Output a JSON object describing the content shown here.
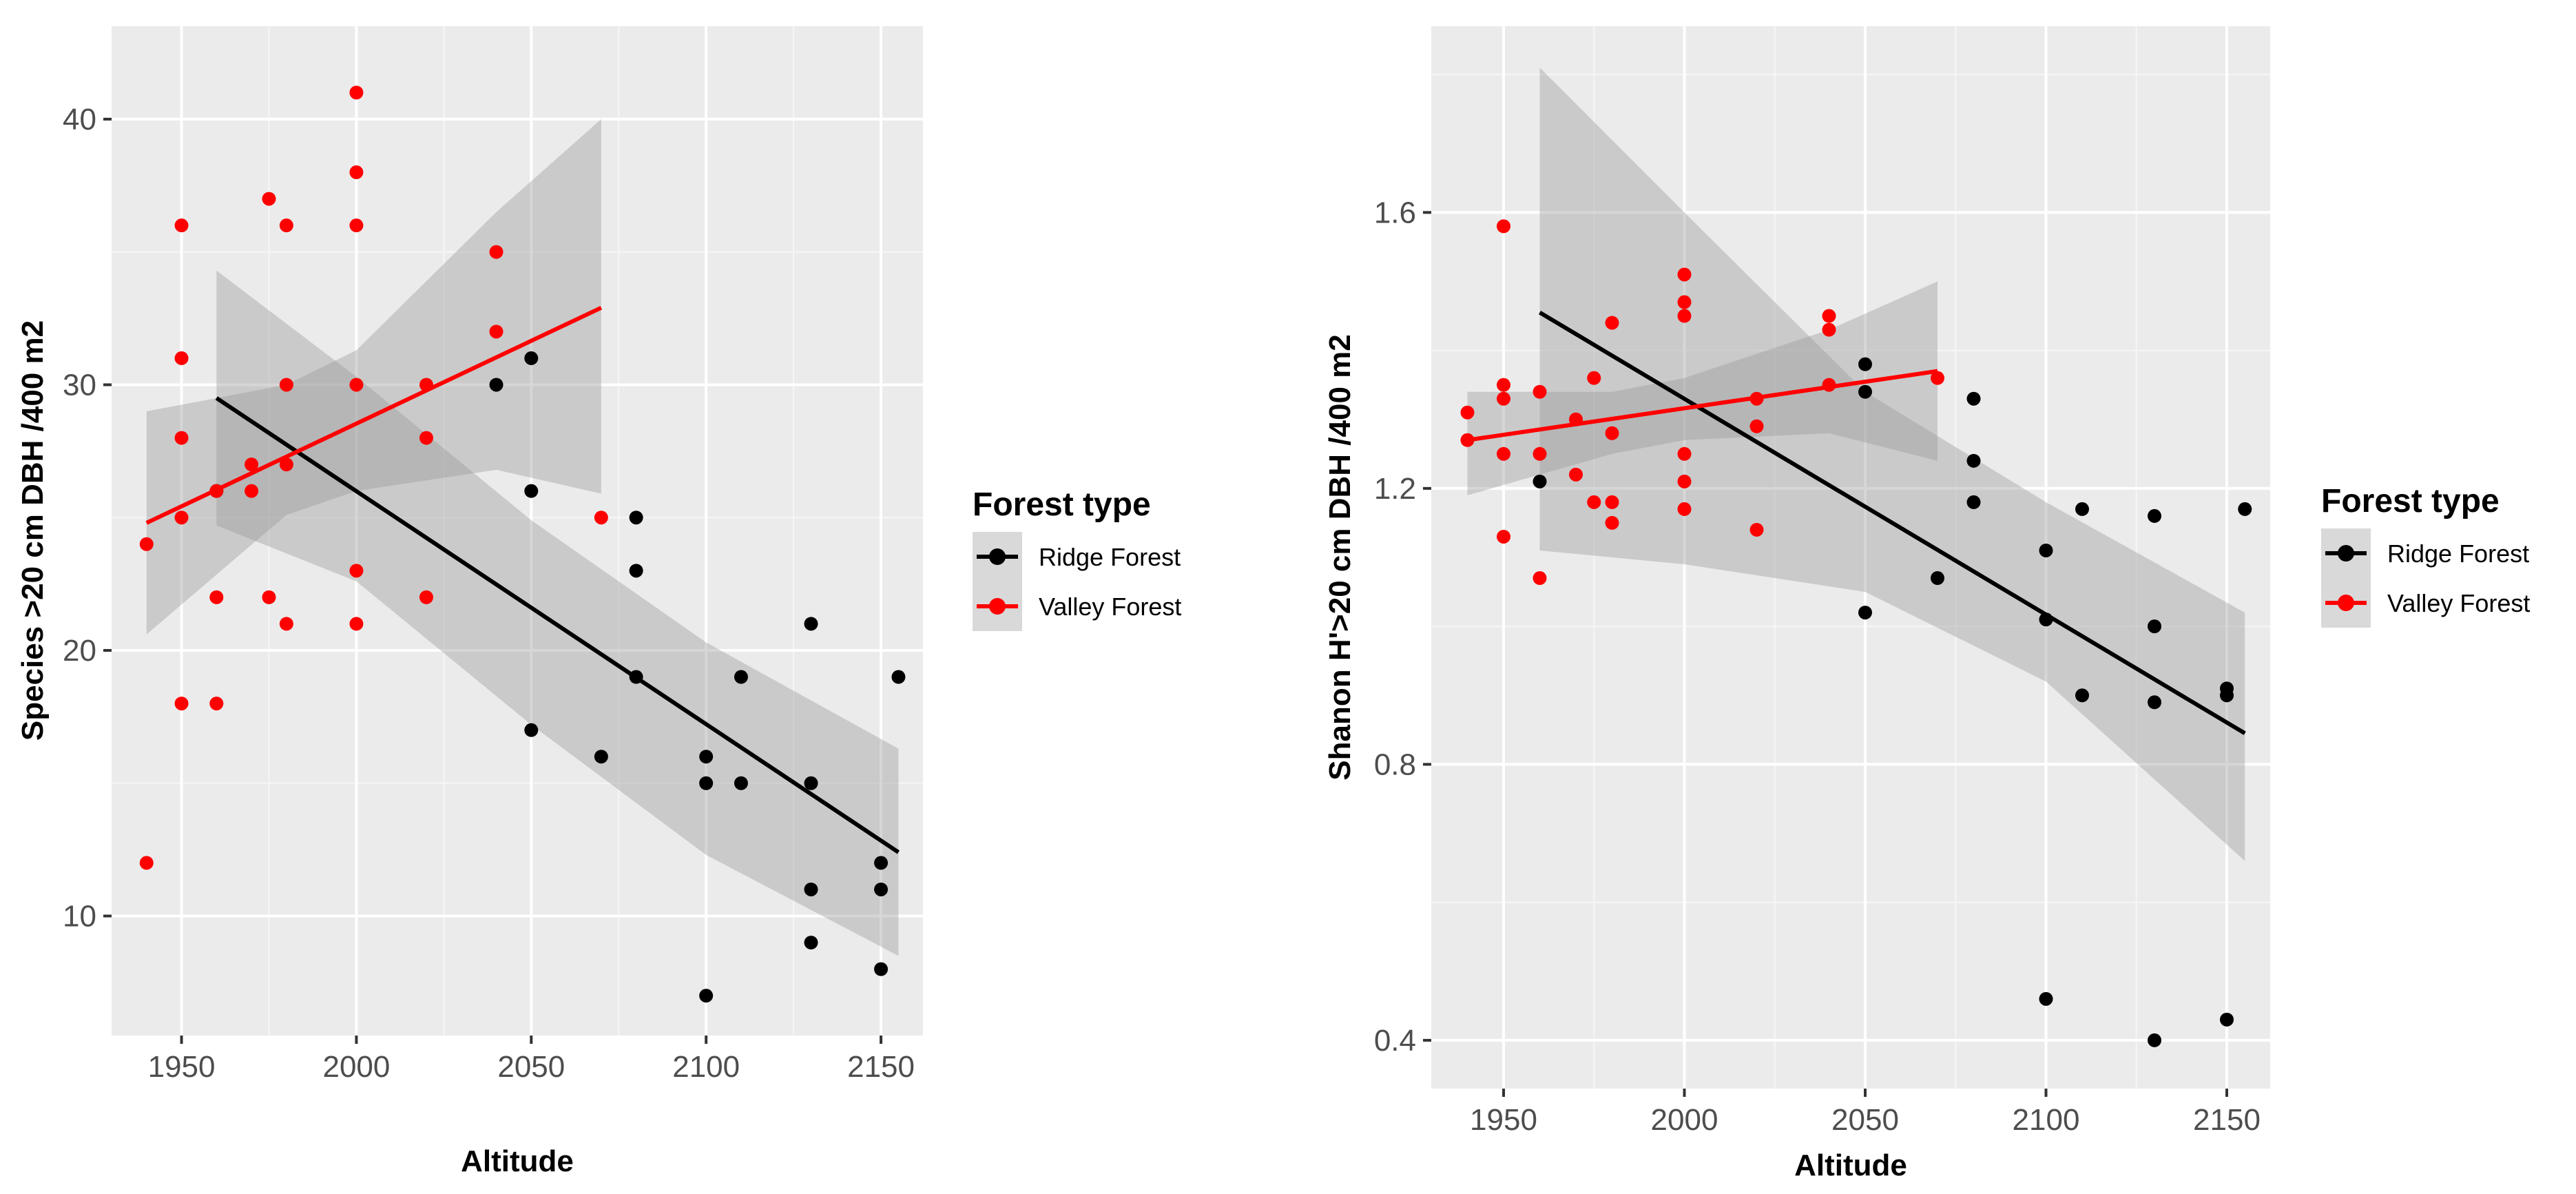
{
  "chart_data": [
    {
      "type": "scatter",
      "title": "",
      "xlabel": "Altitude",
      "ylabel": "Species >20 cm DBH /400 m2",
      "xlim": [
        1930,
        2162
      ],
      "ylim": [
        5.5,
        43.5
      ],
      "xticks": [
        1950,
        2000,
        2050,
        2100,
        2150
      ],
      "yticks": [
        10,
        20,
        30,
        40
      ],
      "legend": {
        "title": "Forest type",
        "entries": [
          "Ridge Forest",
          "Valley Forest"
        ],
        "position": "right"
      },
      "series": [
        {
          "name": "Ridge Forest",
          "color": "#000000",
          "points": [
            [
              1960,
              26
            ],
            [
              2040,
              30
            ],
            [
              2050,
              31
            ],
            [
              2050,
              26
            ],
            [
              2050,
              17
            ],
            [
              2070,
              16
            ],
            [
              2080,
              25
            ],
            [
              2080,
              23
            ],
            [
              2080,
              19
            ],
            [
              2100,
              16
            ],
            [
              2100,
              15
            ],
            [
              2100,
              7
            ],
            [
              2110,
              19
            ],
            [
              2110,
              15
            ],
            [
              2130,
              21
            ],
            [
              2130,
              15
            ],
            [
              2130,
              11
            ],
            [
              2130,
              9
            ],
            [
              2150,
              12
            ],
            [
              2150,
              11
            ],
            [
              2150,
              8
            ],
            [
              2155,
              19
            ]
          ],
          "fit": {
            "x": [
              1960,
              2155
            ],
            "y": [
              29.5,
              12.4
            ]
          },
          "ci": {
            "x": [
              1960,
              2000,
              2050,
              2100,
              2155
            ],
            "upper": [
              34.3,
              30.3,
              24.9,
              20.3,
              16.3
            ],
            "lower": [
              24.7,
              22.6,
              17.2,
              12.3,
              8.5
            ]
          }
        },
        {
          "name": "Valley Forest",
          "color": "#ff0000",
          "points": [
            [
              1940,
              24
            ],
            [
              1940,
              12
            ],
            [
              1950,
              36
            ],
            [
              1950,
              31
            ],
            [
              1950,
              28
            ],
            [
              1950,
              25
            ],
            [
              1950,
              18
            ],
            [
              1960,
              26
            ],
            [
              1960,
              22
            ],
            [
              1960,
              18
            ],
            [
              1970,
              27
            ],
            [
              1970,
              26
            ],
            [
              1975,
              37
            ],
            [
              1975,
              22
            ],
            [
              1980,
              36
            ],
            [
              1980,
              30
            ],
            [
              1980,
              27
            ],
            [
              1980,
              21
            ],
            [
              2000,
              41
            ],
            [
              2000,
              38
            ],
            [
              2000,
              36
            ],
            [
              2000,
              30
            ],
            [
              2000,
              23
            ],
            [
              2000,
              21
            ],
            [
              2020,
              30
            ],
            [
              2020,
              28
            ],
            [
              2020,
              22
            ],
            [
              2040,
              35
            ],
            [
              2040,
              32
            ],
            [
              2070,
              25
            ]
          ],
          "fit": {
            "x": [
              1940,
              2070
            ],
            "y": [
              24.8,
              32.9
            ]
          },
          "ci": {
            "x": [
              1940,
              1980,
              2000,
              2040,
              2070
            ],
            "upper": [
              29.0,
              30.0,
              31.3,
              36.5,
              40.0
            ],
            "lower": [
              20.6,
              25.1,
              26.0,
              26.8,
              25.9
            ]
          }
        }
      ]
    },
    {
      "type": "scatter",
      "title": "",
      "xlabel": "Altitude",
      "ylabel": "Shanon H'>20 cm DBH /400 m2",
      "xlim": [
        1930,
        2162
      ],
      "ylim": [
        0.33,
        1.87
      ],
      "xticks": [
        1950,
        2000,
        2050,
        2100,
        2150
      ],
      "ytick_values": [
        0.4,
        0.8,
        1.2,
        1.6
      ],
      "yticks": [
        "0.4",
        "0.8",
        "1.2",
        "1.6"
      ],
      "legend": {
        "title": "Forest type",
        "entries": [
          "Ridge Forest",
          "Valley Forest"
        ],
        "position": "right"
      },
      "series": [
        {
          "name": "Ridge Forest",
          "color": "#000000",
          "points": [
            [
              1960,
              1.21
            ],
            [
              2050,
              1.38
            ],
            [
              2050,
              1.34
            ],
            [
              2050,
              1.02
            ],
            [
              2070,
              1.07
            ],
            [
              2080,
              1.33
            ],
            [
              2080,
              1.24
            ],
            [
              2080,
              1.18
            ],
            [
              2100,
              1.11
            ],
            [
              2100,
              1.01
            ],
            [
              2100,
              0.46
            ],
            [
              2110,
              1.17
            ],
            [
              2110,
              0.9
            ],
            [
              2130,
              1.16
            ],
            [
              2130,
              1.0
            ],
            [
              2130,
              0.89
            ],
            [
              2130,
              0.4
            ],
            [
              2150,
              0.91
            ],
            [
              2150,
              0.9
            ],
            [
              2150,
              0.43
            ],
            [
              2155,
              1.17
            ]
          ],
          "fit": {
            "x": [
              1960,
              2155
            ],
            "y": [
              1.455,
              0.845
            ]
          },
          "ci": {
            "x": [
              1960,
              2000,
              2050,
              2100,
              2155
            ],
            "upper": [
              1.81,
              1.6,
              1.34,
              1.18,
              1.02
            ],
            "lower": [
              1.11,
              1.09,
              1.05,
              0.92,
              0.66
            ]
          }
        },
        {
          "name": "Valley Forest",
          "color": "#ff0000",
          "points": [
            [
              1940,
              1.31
            ],
            [
              1940,
              1.27
            ],
            [
              1950,
              1.58
            ],
            [
              1950,
              1.35
            ],
            [
              1950,
              1.33
            ],
            [
              1950,
              1.25
            ],
            [
              1950,
              1.13
            ],
            [
              1960,
              1.34
            ],
            [
              1960,
              1.25
            ],
            [
              1960,
              1.07
            ],
            [
              1970,
              1.3
            ],
            [
              1970,
              1.22
            ],
            [
              1975,
              1.36
            ],
            [
              1975,
              1.18
            ],
            [
              1980,
              1.44
            ],
            [
              1980,
              1.28
            ],
            [
              1980,
              1.18
            ],
            [
              1980,
              1.15
            ],
            [
              2000,
              1.51
            ],
            [
              2000,
              1.47
            ],
            [
              2000,
              1.45
            ],
            [
              2000,
              1.25
            ],
            [
              2000,
              1.21
            ],
            [
              2000,
              1.17
            ],
            [
              2020,
              1.33
            ],
            [
              2020,
              1.29
            ],
            [
              2020,
              1.14
            ],
            [
              2040,
              1.45
            ],
            [
              2040,
              1.43
            ],
            [
              2040,
              1.35
            ],
            [
              2070,
              1.36
            ]
          ],
          "fit": {
            "x": [
              1940,
              2070
            ],
            "y": [
              1.27,
              1.37
            ]
          },
          "ci": {
            "x": [
              1940,
              1980,
              2000,
              2040,
              2070
            ],
            "upper": [
              1.34,
              1.34,
              1.36,
              1.43,
              1.5
            ],
            "lower": [
              1.19,
              1.25,
              1.27,
              1.28,
              1.24
            ]
          }
        }
      ]
    }
  ]
}
